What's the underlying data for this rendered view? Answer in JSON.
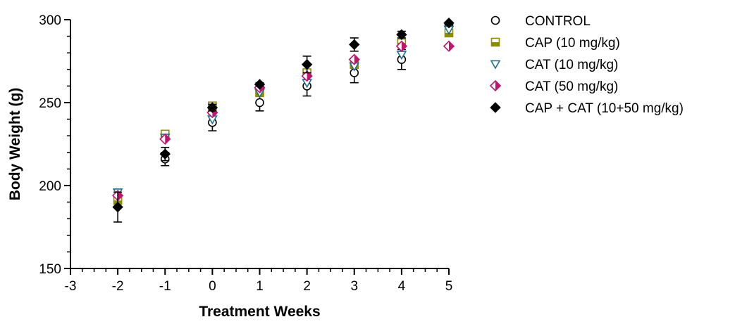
{
  "chart_data": {
    "type": "scatter",
    "xlabel": "Treatment Weeks",
    "ylabel": "Body Weight (g)",
    "xlim": [
      -3,
      5
    ],
    "ylim": [
      150,
      300
    ],
    "xticks": [
      "-3",
      "-2",
      "-1",
      "0",
      "1",
      "2",
      "3",
      "4",
      "5"
    ],
    "yticks": [
      "150",
      "200",
      "250",
      "300"
    ],
    "grid": false,
    "legend_position": "right",
    "series": [
      {
        "name": "CONTROL",
        "marker": "circle-open",
        "color": "#000000",
        "x": [
          -2,
          -1,
          0,
          1,
          2,
          3,
          4,
          5
        ],
        "y": [
          193,
          216,
          238,
          250,
          260,
          268,
          276,
          297
        ],
        "err": [
          0,
          4,
          5,
          5,
          6,
          6,
          6,
          0
        ]
      },
      {
        "name": "CAP (10 mg/kg)",
        "marker": "square-half",
        "color": "#8c8c00",
        "x": [
          -2,
          -1,
          0,
          1,
          2,
          3,
          4,
          5
        ],
        "y": [
          191,
          231,
          248,
          256,
          268,
          273,
          286,
          292
        ],
        "err": [
          0,
          0,
          0,
          0,
          0,
          0,
          0,
          0
        ]
      },
      {
        "name": "CAT (10 mg/kg)",
        "marker": "triangle-down-open",
        "color": "#1f6f8b",
        "x": [
          -2,
          -1,
          0,
          1,
          2,
          3,
          4,
          5
        ],
        "y": [
          196,
          229,
          240,
          256,
          262,
          272,
          279,
          294
        ],
        "err": [
          0,
          0,
          0,
          0,
          0,
          0,
          0,
          0
        ]
      },
      {
        "name": "CAT (50 mg/kg)",
        "marker": "diamond-half",
        "color": "#c0146e",
        "x": [
          -2,
          -1,
          0,
          1,
          2,
          3,
          4,
          5
        ],
        "y": [
          194,
          228,
          244,
          259,
          266,
          276,
          284,
          284
        ],
        "err": [
          0,
          0,
          0,
          0,
          0,
          0,
          0,
          0
        ]
      },
      {
        "name": "CAP + CAT (10+50 mg/kg)",
        "marker": "diamond-filled",
        "color": "#000000",
        "x": [
          -2,
          -1,
          0,
          1,
          2,
          3,
          4,
          5
        ],
        "y": [
          187,
          219,
          247,
          261,
          273,
          285,
          291,
          298
        ],
        "err": [
          9,
          4,
          2,
          1,
          5,
          4,
          2,
          0
        ]
      }
    ]
  }
}
